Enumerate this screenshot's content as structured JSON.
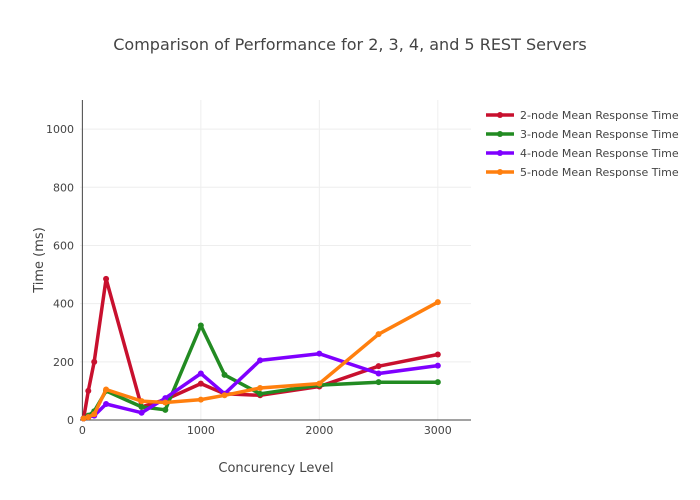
{
  "chart_data": {
    "type": "line",
    "title": "Comparison of Performance for 2, 3, 4, and 5 REST Servers",
    "xlabel": "Concurency Level",
    "ylabel": "Time (ms)",
    "xlim": [
      -20,
      3280
    ],
    "ylim": [
      0,
      1100
    ],
    "xticks": [
      0,
      1000,
      2000,
      3000
    ],
    "yticks": [
      0,
      200,
      400,
      600,
      800,
      1000
    ],
    "grid": true,
    "legend_position": "top-right",
    "series": [
      {
        "name": "2-node Mean Response Time",
        "color": "#c8102e",
        "x": [
          10,
          50,
          100,
          200,
          500,
          700,
          1000,
          1200,
          1500,
          2000,
          2500,
          3000
        ],
        "y": [
          5,
          100,
          200,
          485,
          45,
          70,
          125,
          90,
          85,
          115,
          185,
          225
        ]
      },
      {
        "name": "3-node Mean Response Time",
        "color": "#228b22",
        "x": [
          10,
          50,
          100,
          200,
          500,
          700,
          1000,
          1200,
          1500,
          2000,
          2500,
          3000
        ],
        "y": [
          5,
          15,
          30,
          100,
          45,
          35,
          325,
          155,
          90,
          120,
          130,
          130
        ]
      },
      {
        "name": "4-node Mean Response Time",
        "color": "#7f00ff",
        "x": [
          10,
          50,
          100,
          200,
          500,
          700,
          1000,
          1200,
          1500,
          2000,
          2500,
          3000
        ],
        "y": [
          5,
          10,
          15,
          55,
          25,
          75,
          160,
          90,
          205,
          228,
          160,
          187
        ]
      },
      {
        "name": "5-node Mean Response Time",
        "color": "#ff7f0e",
        "x": [
          10,
          50,
          100,
          200,
          500,
          700,
          1000,
          1200,
          1500,
          2000,
          2500,
          3000
        ],
        "y": [
          5,
          10,
          20,
          105,
          65,
          60,
          70,
          85,
          110,
          125,
          295,
          405
        ]
      }
    ]
  }
}
